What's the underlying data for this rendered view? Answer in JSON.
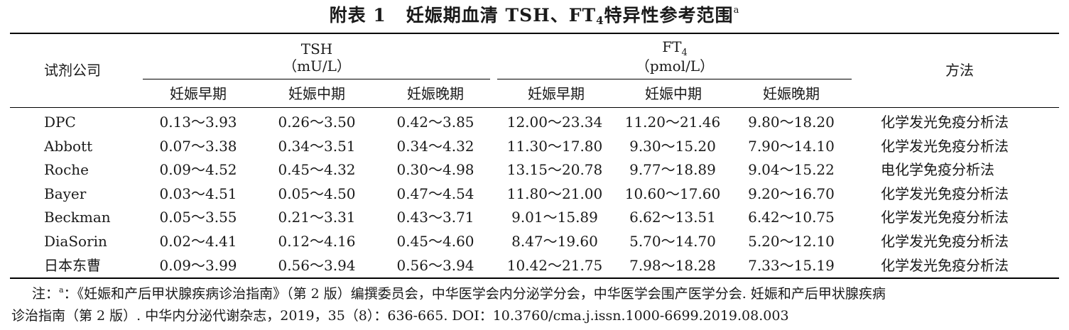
{
  "title": {
    "prefix": "附表 1",
    "text": "妊娠期血清 TSH、FT",
    "sub": "4",
    "suffix": "特异性参考范围",
    "sup": "a"
  },
  "header": {
    "company": "试剂公司",
    "tsh_label": "TSH",
    "tsh_unit": "（mU/L）",
    "ft4_label": "FT",
    "ft4_sub": "4",
    "ft4_unit": "（pmol/L）",
    "method": "方法",
    "periods": [
      "妊娠早期",
      "妊娠中期",
      "妊娠晚期",
      "妊娠早期",
      "妊娠中期",
      "妊娠晚期"
    ]
  },
  "rows": [
    {
      "company": "DPC",
      "tsh": [
        "0.13～3.93",
        "0.26～3.50",
        "0.42～3.85"
      ],
      "ft4": [
        "12.00～23.34",
        "11.20～21.46",
        "9.80～18.20"
      ],
      "method": "化学发光免疫分析法"
    },
    {
      "company": "Abbott",
      "tsh": [
        "0.07～3.38",
        "0.34～3.51",
        "0.34～4.32"
      ],
      "ft4": [
        "11.30～17.80",
        "9.30～15.20",
        "7.90～14.10"
      ],
      "method": "化学发光免疫分析法"
    },
    {
      "company": "Roche",
      "tsh": [
        "0.09～4.52",
        "0.45～4.32",
        "0.30～4.98"
      ],
      "ft4": [
        "13.15～20.78",
        "9.77～18.89",
        "9.04～15.22"
      ],
      "method": "电化学免疫分析法"
    },
    {
      "company": "Bayer",
      "tsh": [
        "0.03～4.51",
        "0.05～4.50",
        "0.47～4.54"
      ],
      "ft4": [
        "11.80～21.00",
        "10.60～17.60",
        "9.20～16.70"
      ],
      "method": "化学发光免疫分析法"
    },
    {
      "company": "Beckman",
      "tsh": [
        "0.05～3.55",
        "0.21～3.31",
        "0.43～3.71"
      ],
      "ft4": [
        "9.01～15.89",
        "6.62～13.51",
        "6.42～10.75"
      ],
      "method": "化学发光免疫分析法"
    },
    {
      "company": "DiaSorin",
      "tsh": [
        "0.02～4.41",
        "0.12～4.16",
        "0.45～4.60"
      ],
      "ft4": [
        "8.47～19.60",
        "5.70～14.70",
        "5.20～12.10"
      ],
      "method": "化学发光免疫分析法"
    },
    {
      "company": "日本东曹",
      "tsh": [
        "0.09～3.99",
        "0.56～3.94",
        "0.56～3.94"
      ],
      "ft4": [
        "10.42～21.75",
        "7.98～18.28",
        "7.33～15.19"
      ],
      "method": "化学发光免疫分析法"
    }
  ],
  "note": {
    "prefix": "注：",
    "sup": "a",
    "line1": "：《妊娠和产后甲状腺疾病诊治指南》（第 2 版）编撰委员会，中华医学会内分泌学分会，中华医学会围产医学分会. 妊娠和产后甲状腺疾病",
    "line2": "诊治指南（第 2 版）. 中华内分泌代谢杂志，2019，35（8）：636-665. DOI：10.3760/cma.j.issn.1000-6699.2019.08.003"
  }
}
